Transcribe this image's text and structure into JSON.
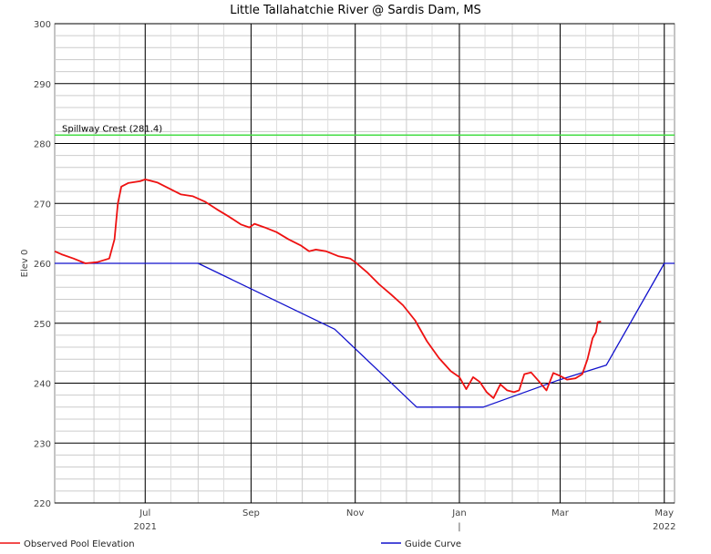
{
  "chart_data": {
    "type": "line",
    "title": "Little Tallahatchie River @ Sardis Dam, MS",
    "ylabel": "Elev 0",
    "xlabel": "",
    "ylim": [
      220,
      300
    ],
    "y_ticks": [
      220,
      230,
      240,
      250,
      260,
      270,
      280,
      290,
      300
    ],
    "x_ticks": [
      {
        "label": "Jul",
        "sub": "2021",
        "x": "2021-07-01"
      },
      {
        "label": "Sep",
        "sub": "",
        "x": "2021-09-01"
      },
      {
        "label": "Nov",
        "sub": "",
        "x": "2021-11-01"
      },
      {
        "label": "Jan",
        "sub": "|",
        "x": "2022-01-01"
      },
      {
        "label": "Mar",
        "sub": "",
        "x": "2022-03-01"
      },
      {
        "label": "May",
        "sub": "2022",
        "x": "2022-05-01"
      }
    ],
    "xlim": [
      "2021-05-09",
      "2022-05-07"
    ],
    "grid": true,
    "legend_position": "bottom",
    "annotations": [
      {
        "text": "Spillway Crest (281.4)",
        "y": 281.4,
        "color": "#44dd44"
      }
    ],
    "series": [
      {
        "name": "Observed Pool Elevation",
        "color": "#ee1111",
        "points": [
          [
            "2021-05-09",
            262.0
          ],
          [
            "2021-05-13",
            261.5
          ],
          [
            "2021-05-20",
            260.8
          ],
          [
            "2021-05-27",
            260.0
          ],
          [
            "2021-06-03",
            260.2
          ],
          [
            "2021-06-10",
            260.8
          ],
          [
            "2021-06-13",
            264.0
          ],
          [
            "2021-06-15",
            270.0
          ],
          [
            "2021-06-17",
            272.8
          ],
          [
            "2021-06-21",
            273.4
          ],
          [
            "2021-06-28",
            273.7
          ],
          [
            "2021-07-01",
            274.0
          ],
          [
            "2021-07-08",
            273.5
          ],
          [
            "2021-07-15",
            272.5
          ],
          [
            "2021-07-22",
            271.5
          ],
          [
            "2021-07-29",
            271.2
          ],
          [
            "2021-08-05",
            270.3
          ],
          [
            "2021-08-12",
            269.0
          ],
          [
            "2021-08-19",
            267.8
          ],
          [
            "2021-08-26",
            266.5
          ],
          [
            "2021-08-31",
            266.0
          ],
          [
            "2021-09-03",
            266.6
          ],
          [
            "2021-09-09",
            266.0
          ],
          [
            "2021-09-16",
            265.2
          ],
          [
            "2021-09-23",
            264.0
          ],
          [
            "2021-09-30",
            263.0
          ],
          [
            "2021-10-05",
            262.0
          ],
          [
            "2021-10-09",
            262.3
          ],
          [
            "2021-10-15",
            262.0
          ],
          [
            "2021-10-22",
            261.2
          ],
          [
            "2021-10-29",
            260.8
          ],
          [
            "2021-11-01",
            260.2
          ],
          [
            "2021-11-08",
            258.5
          ],
          [
            "2021-11-15",
            256.5
          ],
          [
            "2021-11-22",
            254.8
          ],
          [
            "2021-11-29",
            253.0
          ],
          [
            "2021-12-06",
            250.5
          ],
          [
            "2021-12-13",
            247.0
          ],
          [
            "2021-12-20",
            244.2
          ],
          [
            "2021-12-27",
            242.0
          ],
          [
            "2022-01-01",
            241.0
          ],
          [
            "2022-01-05",
            239.0
          ],
          [
            "2022-01-09",
            241.0
          ],
          [
            "2022-01-13",
            240.2
          ],
          [
            "2022-01-17",
            238.5
          ],
          [
            "2022-01-21",
            237.5
          ],
          [
            "2022-01-25",
            239.8
          ],
          [
            "2022-01-29",
            238.8
          ],
          [
            "2022-02-02",
            238.5
          ],
          [
            "2022-02-05",
            238.8
          ],
          [
            "2022-02-08",
            241.5
          ],
          [
            "2022-02-12",
            241.8
          ],
          [
            "2022-02-16",
            240.5
          ],
          [
            "2022-02-21",
            238.8
          ],
          [
            "2022-02-25",
            241.7
          ],
          [
            "2022-03-01",
            241.2
          ],
          [
            "2022-03-05",
            240.6
          ],
          [
            "2022-03-10",
            240.8
          ],
          [
            "2022-03-14",
            241.5
          ],
          [
            "2022-03-17",
            244.0
          ],
          [
            "2022-03-20",
            247.5
          ],
          [
            "2022-03-22",
            248.5
          ],
          [
            "2022-03-23",
            250.2
          ],
          [
            "2022-03-25",
            250.3
          ]
        ]
      },
      {
        "name": "Guide Curve",
        "color": "#1111cc",
        "points": [
          [
            "2021-05-09",
            260.0
          ],
          [
            "2021-08-01",
            260.0
          ],
          [
            "2021-10-20",
            249.0
          ],
          [
            "2021-12-07",
            236.0
          ],
          [
            "2022-01-15",
            236.0
          ],
          [
            "2022-02-28",
            240.5
          ],
          [
            "2022-03-28",
            243.0
          ],
          [
            "2022-05-01",
            260.0
          ],
          [
            "2022-05-07",
            260.0
          ]
        ]
      }
    ]
  }
}
